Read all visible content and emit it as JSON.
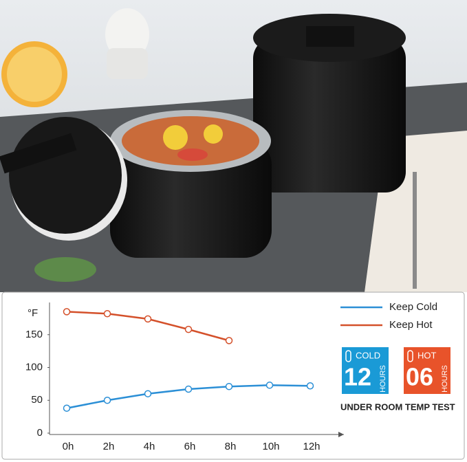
{
  "chart_data": {
    "type": "line",
    "y_label": "°F",
    "categories": [
      "0h",
      "2h",
      "4h",
      "6h",
      "8h",
      "10h",
      "12h"
    ],
    "series": [
      {
        "name": "Keep Cold",
        "color": "#2b8fd6",
        "values": [
          38,
          50,
          60,
          67,
          71,
          73,
          72
        ]
      },
      {
        "name": "Keep Hot",
        "color": "#d4502a",
        "values": [
          185,
          182,
          174,
          158,
          141,
          null,
          null
        ]
      }
    ],
    "ylim": [
      0,
      199
    ],
    "yticks": [
      0,
      50,
      100,
      150
    ]
  },
  "badges": [
    {
      "label": "COLD",
      "number": "12",
      "unit": "HOURS",
      "color": "#1a9ad6"
    },
    {
      "label": "HOT",
      "number": "06",
      "unit": "HOURS",
      "color": "#e8532a"
    }
  ],
  "caption": "UNDER ROOM TEMP TEST"
}
